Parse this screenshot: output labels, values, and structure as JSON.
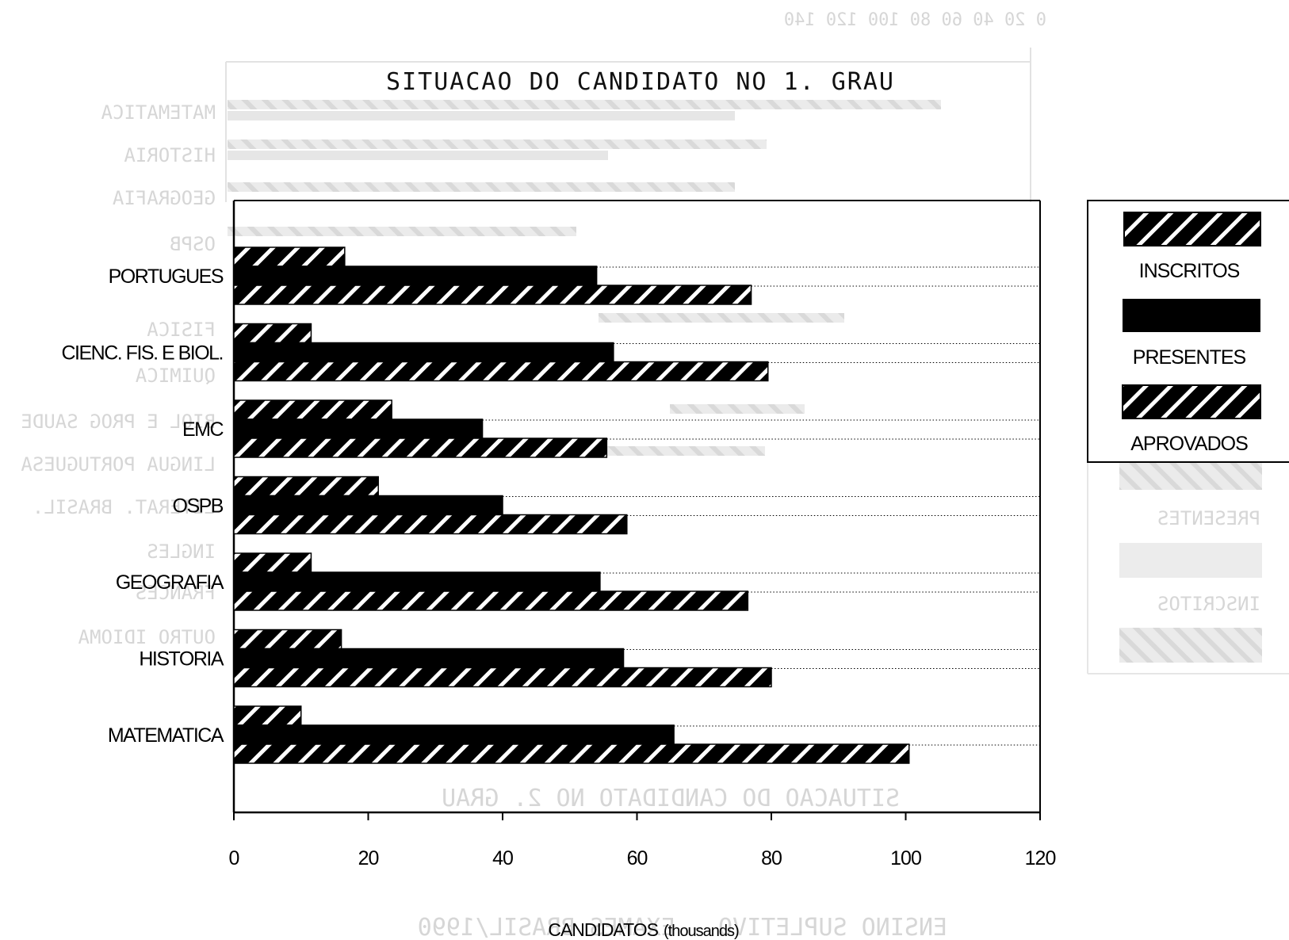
{
  "chart_data": {
    "type": "bar",
    "orientation": "horizontal",
    "title": "SITUACAO DO CANDIDATO NO 1. GRAU",
    "xlabel": "CANDIDATOS",
    "xlabel_unit": "(thousands)",
    "ylabel": "",
    "xlim": [
      0,
      120
    ],
    "x_ticks": [
      "0",
      "20",
      "40",
      "60",
      "80",
      "100",
      "120"
    ],
    "categories": [
      "PORTUGUES",
      "CIENC. FIS. E BIOL.",
      "EMC",
      "OSPB",
      "GEOGRAFIA",
      "HISTORIA",
      "MATEMATICA"
    ],
    "series": [
      {
        "name": "APROVADOS",
        "values": [
          16.5,
          11.5,
          23.5,
          21.5,
          11.5,
          16,
          10
        ],
        "pattern": "hatch-white-on-black"
      },
      {
        "name": "PRESENTES",
        "values": [
          54,
          56.5,
          37,
          40,
          54.5,
          58,
          65.5
        ],
        "pattern": "solid-black"
      },
      {
        "name": "INSCRITOS",
        "values": [
          77,
          79.5,
          55.5,
          58.5,
          76.5,
          80,
          100.5
        ],
        "pattern": "hatch-white-on-black"
      }
    ],
    "legend": {
      "placement": "right",
      "items": [
        "INSCRITOS",
        "PRESENTES",
        "APROVADOS"
      ]
    },
    "grid": "dotted guide lines from bar ends",
    "colors": {
      "bar": "#000000",
      "hatch": "#ffffff",
      "frame": "#000000",
      "background": "#ffffff",
      "bleed_through": "#d6d6d6"
    }
  }
}
